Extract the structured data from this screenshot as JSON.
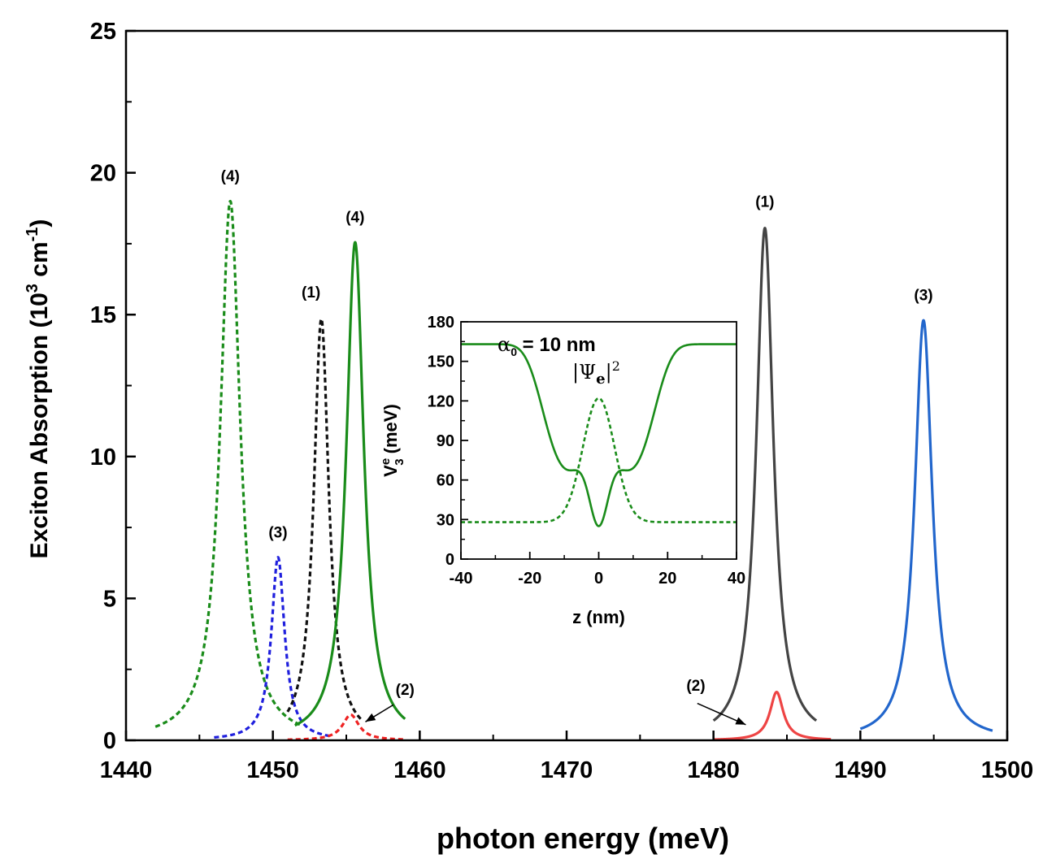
{
  "chart_data": [
    {
      "type": "line",
      "role": "main",
      "xlabel": "photon energy (meV)",
      "ylabel_parts": {
        "main": "Exciton Absorption (10",
        "sup1": "3",
        "mid": " cm",
        "sup2": "-1",
        "end": ")"
      },
      "xlim": [
        1440,
        1500
      ],
      "ylim": [
        0,
        25
      ],
      "xticks": [
        1440,
        1450,
        1460,
        1470,
        1480,
        1490,
        1500
      ],
      "yticks": [
        0,
        5,
        10,
        15,
        20,
        25
      ],
      "series": [
        {
          "name": "(4) dashed",
          "style": "dashed",
          "color": "#1a8c1a",
          "shape": "lorentzian",
          "center": 1447.1,
          "peak": 19.0,
          "hwhm": 0.82,
          "xrange": [
            1442,
            1452
          ]
        },
        {
          "name": "(3) dashed",
          "style": "dashed",
          "color": "#1f1fdd",
          "shape": "lorentzian",
          "center": 1450.35,
          "peak": 6.45,
          "hwhm": 0.55,
          "xrange": [
            1446,
            1454
          ]
        },
        {
          "name": "(1) dashed",
          "style": "dashed",
          "color": "#111111",
          "shape": "lorentzian",
          "center": 1453.3,
          "peak": 14.85,
          "hwhm": 0.62,
          "xrange": [
            1451,
            1456
          ]
        },
        {
          "name": "(2) dashed",
          "style": "dashed",
          "color": "#ee2222",
          "shape": "lorentzian",
          "center": 1455.3,
          "peak": 0.9,
          "hwhm": 0.68,
          "xrange": [
            1451,
            1459
          ]
        },
        {
          "name": "(4) solid",
          "style": "solid",
          "color": "#1a8c1a",
          "shape": "lorentzian",
          "center": 1455.6,
          "peak": 17.55,
          "hwhm": 0.72,
          "xrange": [
            1451.5,
            1459
          ]
        },
        {
          "name": "(1) solid",
          "style": "solid",
          "color": "#444444",
          "shape": "lorentzian",
          "center": 1483.5,
          "peak": 18.05,
          "hwhm": 0.7,
          "xrange": [
            1480,
            1487
          ]
        },
        {
          "name": "(2) solid",
          "style": "solid",
          "color": "#ee4444",
          "shape": "lorentzian",
          "center": 1484.3,
          "peak": 1.7,
          "hwhm": 0.55,
          "xrange": [
            1480,
            1488
          ]
        },
        {
          "name": "(3) solid",
          "style": "solid",
          "color": "#2266cc",
          "shape": "lorentzian",
          "center": 1494.3,
          "peak": 14.8,
          "hwhm": 0.72,
          "xrange": [
            1490,
            1499
          ]
        }
      ],
      "annotations": [
        {
          "text": "(4)",
          "x": 1447.1,
          "y": 19.7
        },
        {
          "text": "(3)",
          "x": 1450.35,
          "y": 7.15
        },
        {
          "text": "(1)",
          "x": 1452.6,
          "y": 15.6
        },
        {
          "text": "(4)",
          "x": 1455.6,
          "y": 18.25
        },
        {
          "text": "(1)",
          "x": 1483.5,
          "y": 18.8
        },
        {
          "text": "(3)",
          "x": 1494.3,
          "y": 15.5
        }
      ],
      "arrow_annotations": [
        {
          "text": "(2)",
          "label_x": 1459.0,
          "label_y": 1.6,
          "from_x": 1458.2,
          "from_y": 1.25,
          "to_x": 1456.3,
          "to_y": 0.65
        },
        {
          "text": "(2)",
          "label_x": 1478.8,
          "label_y": 1.75,
          "from_x": 1478.9,
          "from_y": 1.3,
          "to_x": 1482.2,
          "to_y": 0.55
        }
      ]
    },
    {
      "type": "line",
      "role": "inset",
      "xlabel": "z (nm)",
      "ylabel_parts": {
        "main": "V",
        "sup": "e",
        "sub": "3",
        "end": " (meV)"
      },
      "xlim": [
        -40,
        40
      ],
      "ylim": [
        0,
        180
      ],
      "xticks": [
        -40,
        -20,
        0,
        20,
        40
      ],
      "yticks": [
        0,
        30,
        60,
        90,
        120,
        150,
        180
      ],
      "alpha_label": {
        "sym": "α",
        "sub": "0",
        "rest": " = 10 nm"
      },
      "psi_label": {
        "bar": "|",
        "sym": "Ψ",
        "sub": "e",
        "sup": "2"
      },
      "series": [
        {
          "name": "potential",
          "style": "solid",
          "color": "#1a8c1a",
          "shape": "potential",
          "base": 163,
          "depth": 120,
          "width": 17,
          "barrier": 41,
          "barrier_width": 9.2,
          "core": 59,
          "core_width": 3.8,
          "xrange": [
            -40,
            40
          ]
        },
        {
          "name": "|Psi_e|^2",
          "style": "dashed",
          "color": "#1a8c1a",
          "shape": "gaussian",
          "base": 28,
          "amp": 94,
          "sigma": 4.6,
          "xrange": [
            -40,
            40
          ]
        }
      ]
    }
  ]
}
